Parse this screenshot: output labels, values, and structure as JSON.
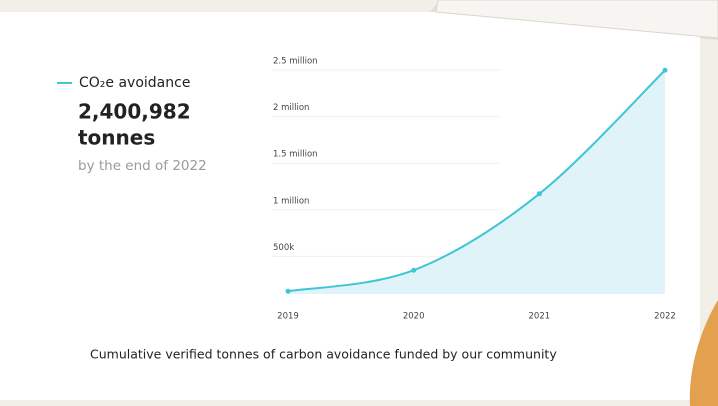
{
  "chart_data": {
    "type": "line",
    "annotations": [
      "2,400,982",
      "tonnes",
      "by the end of 2022"
    ],
    "caption": "Cumulative verified tonnes of carbon avoidance funded by our community",
    "x": [
      2019,
      2020,
      2021,
      2022
    ],
    "xlim": [
      2019,
      2022
    ],
    "xticks": [
      2019,
      2020,
      2021,
      2022
    ],
    "ylim": [
      0,
      2500000
    ],
    "yticks": [
      {
        "value": 500000,
        "label": "500k"
      },
      {
        "value": 1000000,
        "label": "1 million"
      },
      {
        "value": 1500000,
        "label": "1.5 million"
      },
      {
        "value": 2000000,
        "label": "2 million"
      },
      {
        "value": 2500000,
        "label": "2.5 million"
      }
    ],
    "grid": true,
    "series": [
      {
        "name": "CO₂e avoidance",
        "color": "#3ec6d6",
        "fill": "#e0f3f8",
        "values": [
          30000,
          255000,
          1075000,
          2400982
        ]
      }
    ]
  }
}
